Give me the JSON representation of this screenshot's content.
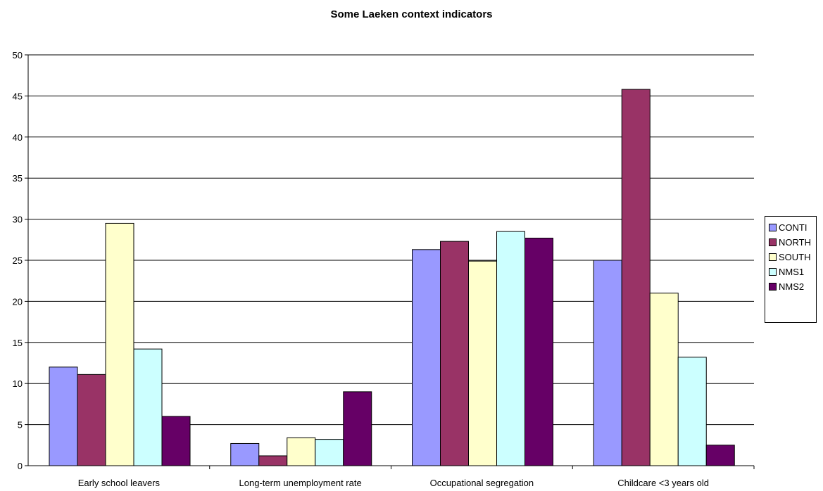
{
  "chart_data": {
    "type": "bar",
    "title": "Some Laeken context indicators",
    "xlabel": "",
    "ylabel": "",
    "ylim": [
      0,
      50
    ],
    "yticks": [
      0,
      5,
      10,
      15,
      20,
      25,
      30,
      35,
      40,
      45,
      50
    ],
    "grid": true,
    "legend_position": "right",
    "categories": [
      "Early school leavers",
      "Long-term unemployment rate",
      "Occupational segregation",
      "Childcare <3 years old"
    ],
    "series": [
      {
        "name": "CONTI",
        "color": "#9999ff",
        "values": [
          12.0,
          2.7,
          26.3,
          25.0
        ]
      },
      {
        "name": "NORTH",
        "color": "#993366",
        "values": [
          11.1,
          1.2,
          27.3,
          45.8
        ]
      },
      {
        "name": "SOUTH",
        "color": "#ffffcc",
        "values": [
          29.5,
          3.4,
          24.9,
          21.0
        ]
      },
      {
        "name": "NMS1",
        "color": "#ccffff",
        "values": [
          14.2,
          3.2,
          28.5,
          13.2
        ]
      },
      {
        "name": "NMS2",
        "color": "#660066",
        "values": [
          6.0,
          9.0,
          27.7,
          2.5
        ]
      }
    ]
  }
}
